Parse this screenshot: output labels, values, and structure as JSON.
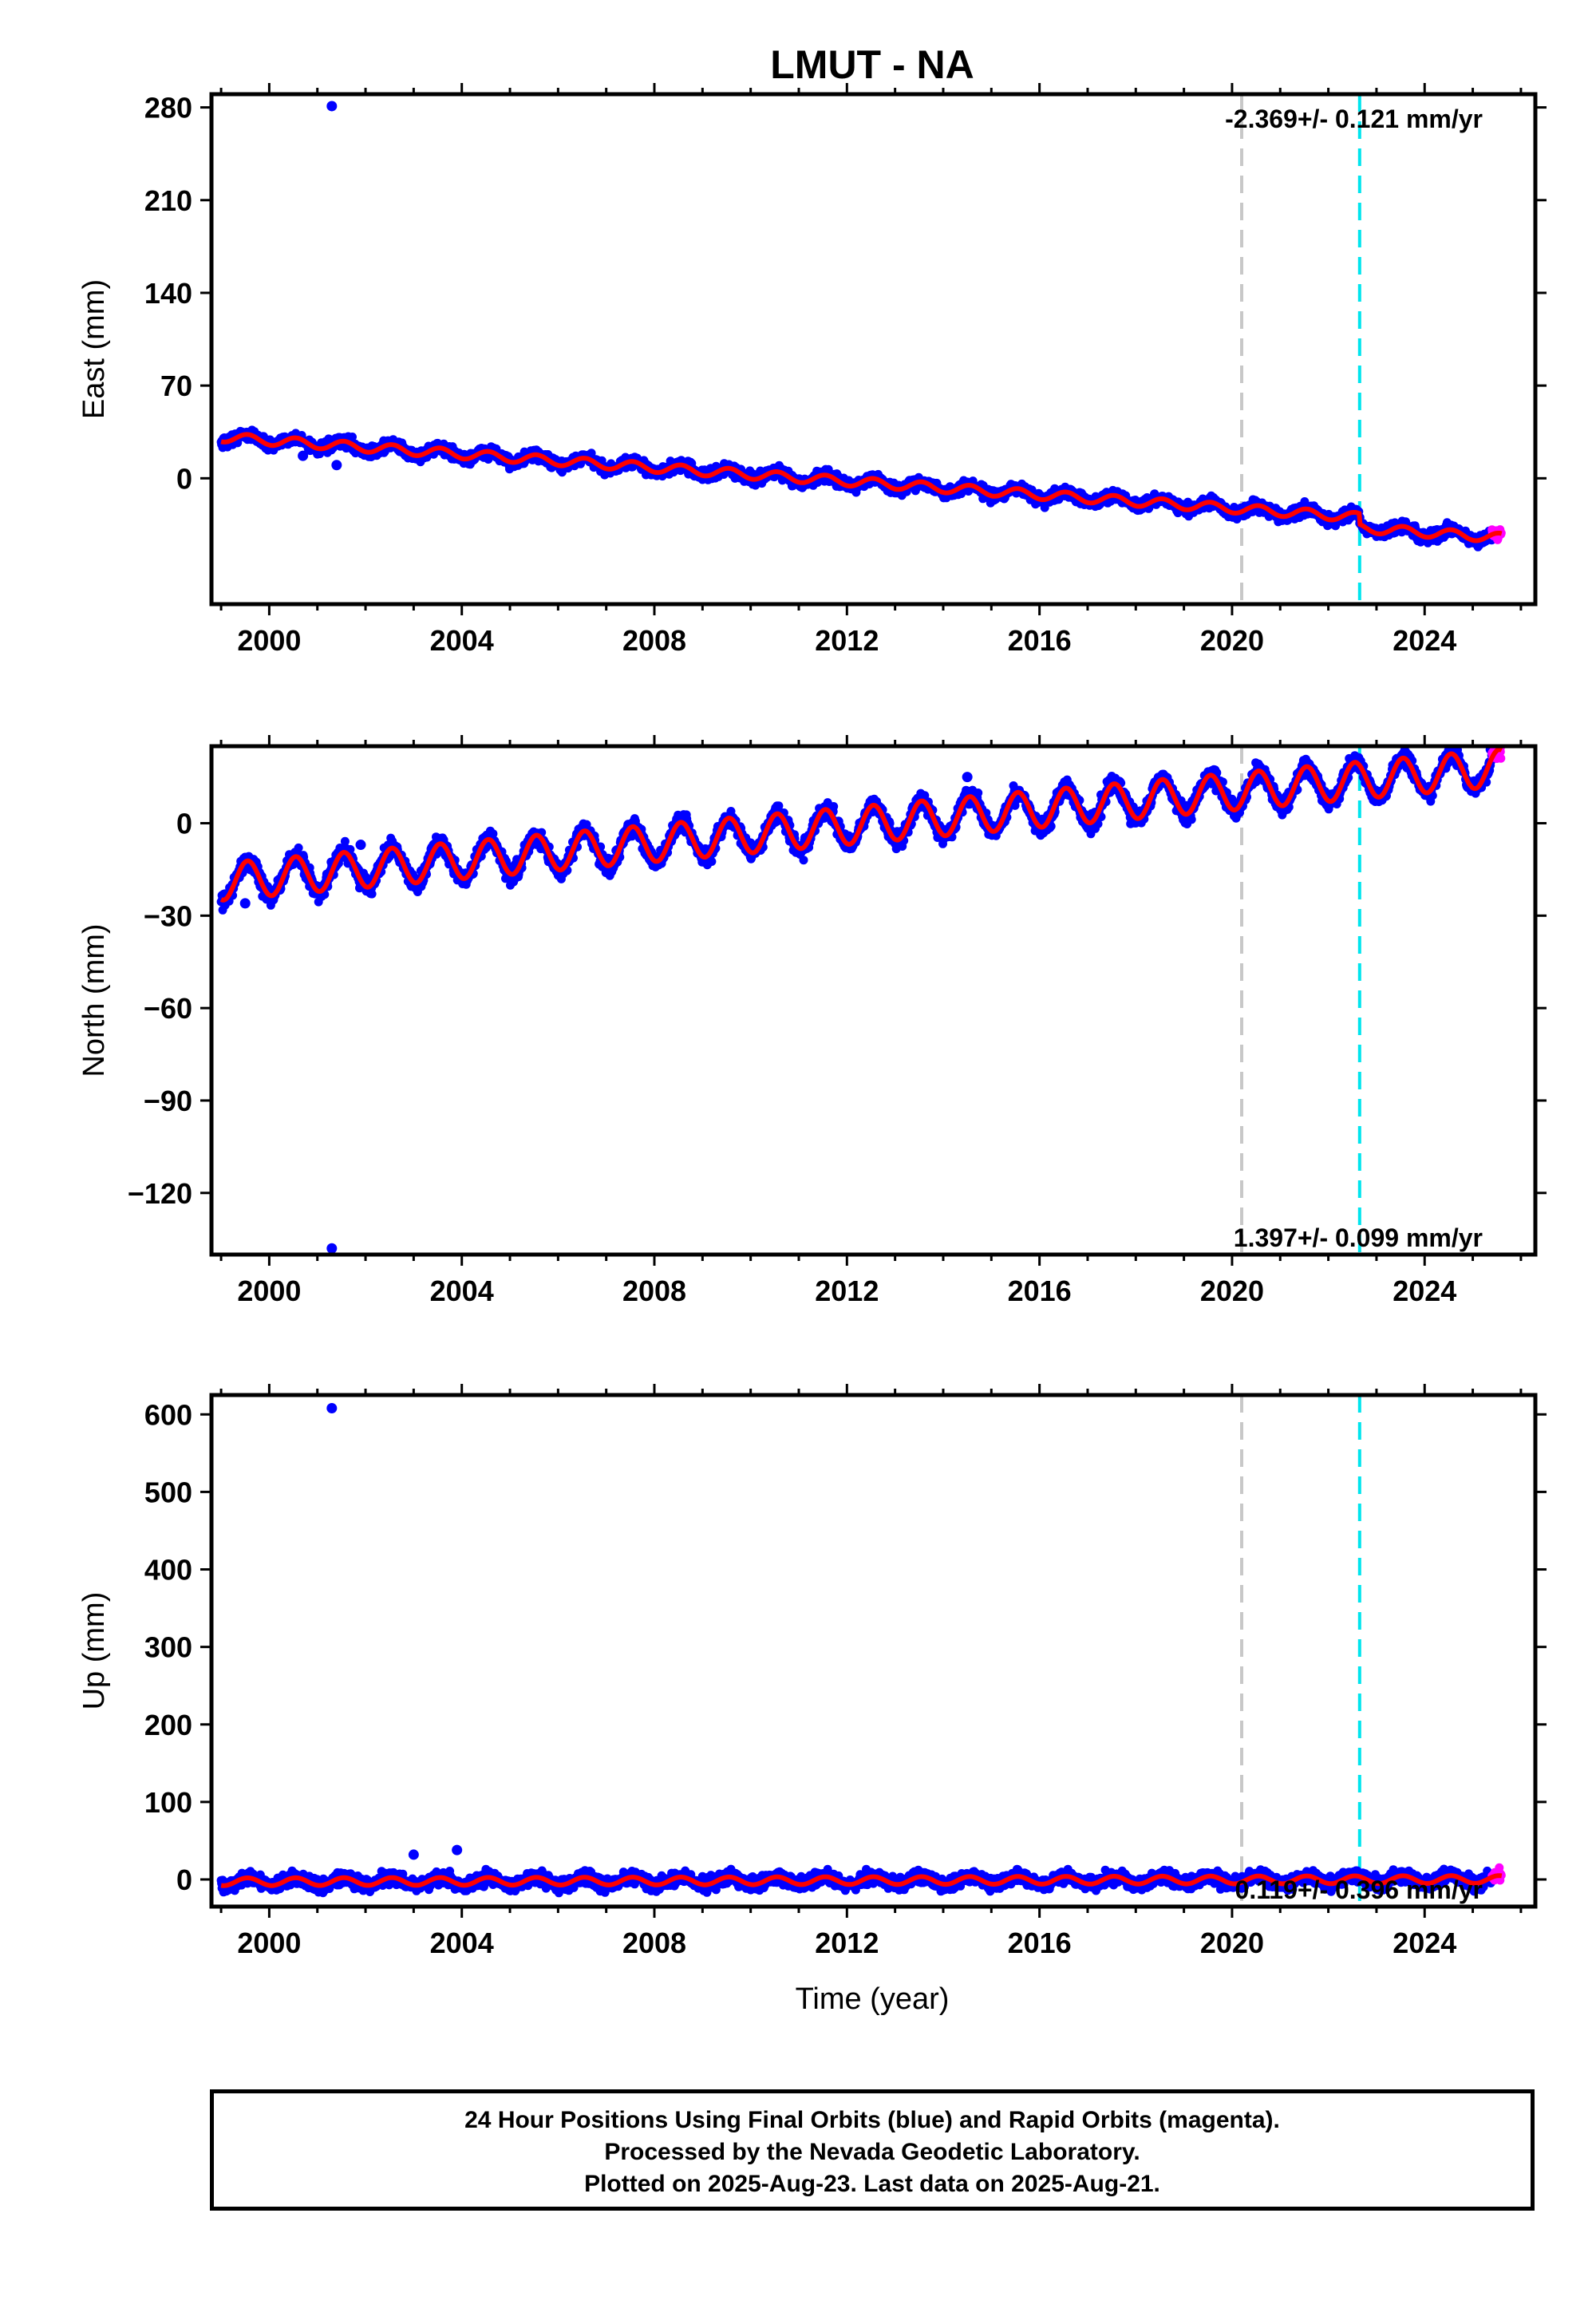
{
  "figure": {
    "title": "LMUT - NA",
    "x_axis_label": "Time (year)",
    "footer_lines": [
      "24 Hour Positions Using Final Orbits (blue) and Rapid Orbits (magenta).",
      "Processed by the Nevada Geodetic Laboratory.",
      "Plotted on 2025-Aug-23. Last data on 2025-Aug-21."
    ]
  },
  "colors": {
    "final_orbits": "#0000ff",
    "rapid_orbits": "#ff00ff",
    "model_fit": "#ff0000",
    "equipment_change_line": "#c8c8c8",
    "earthquake_line": "#00e5ee"
  },
  "chart_data": [
    {
      "type": "scatter",
      "component": "east",
      "ylabel": "East (mm)",
      "xlabel": "",
      "xlim": [
        1998.8,
        2026.3
      ],
      "ylim": [
        -95,
        290
      ],
      "xticks": [
        2000,
        2004,
        2008,
        2012,
        2016,
        2020,
        2024
      ],
      "yticks": [
        0,
        70,
        140,
        210,
        280
      ],
      "rate_label": "-2.369+/- 0.121 mm/yr",
      "rate_position": "top-right",
      "vertical_lines": [
        {
          "kind": "equipment_change",
          "x": 2020.2
        },
        {
          "kind": "earthquake",
          "x": 2022.65
        }
      ],
      "trend": {
        "start": [
          1999.0,
          31
        ],
        "end": [
          2025.6,
          -37
        ],
        "seasonal_amplitude": 3.5,
        "scatter": 3
      },
      "offsets": [
        {
          "x": 2022.65,
          "dy": -8
        }
      ],
      "outliers": [
        {
          "x": 2001.3,
          "y": 281
        },
        {
          "x": 2001.4,
          "y": 10
        },
        {
          "x": 2000.7,
          "y": 17
        }
      ],
      "rapid_segment": [
        2025.4,
        2025.65
      ]
    },
    {
      "type": "scatter",
      "component": "north",
      "ylabel": "North (mm)",
      "xlabel": "",
      "xlim": [
        1998.8,
        2026.3
      ],
      "ylim": [
        -140,
        25
      ],
      "xticks": [
        2000,
        2004,
        2008,
        2012,
        2016,
        2020,
        2024
      ],
      "yticks": [
        -120,
        -90,
        -60,
        -30,
        0
      ],
      "rate_label": "1.397+/- 0.099 mm/yr",
      "rate_position": "bottom-right",
      "vertical_lines": [
        {
          "kind": "equipment_change",
          "x": 2020.2
        },
        {
          "kind": "earthquake",
          "x": 2022.65
        }
      ],
      "trend": {
        "start": [
          1999.0,
          -19
        ],
        "end": [
          2025.6,
          18
        ],
        "seasonal_amplitude": 6,
        "scatter": 2
      },
      "offsets": [],
      "outliers": [
        {
          "x": 2001.3,
          "y": -138
        },
        {
          "x": 2014.5,
          "y": 15
        },
        {
          "x": 2001.9,
          "y": -7
        },
        {
          "x": 1999.5,
          "y": -26
        }
      ],
      "rapid_segment": [
        2025.4,
        2025.65
      ]
    },
    {
      "type": "scatter",
      "component": "up",
      "ylabel": "Up (mm)",
      "xlabel": "Time (year)",
      "xlim": [
        1998.8,
        2026.3
      ],
      "ylim": [
        -35,
        625
      ],
      "xticks": [
        2000,
        2004,
        2008,
        2012,
        2016,
        2020,
        2024
      ],
      "yticks": [
        0,
        100,
        200,
        300,
        400,
        500,
        600
      ],
      "rate_label": "0.119+/- 0.396 mm/yr",
      "rate_position": "bottom-right",
      "vertical_lines": [
        {
          "kind": "equipment_change",
          "x": 2020.2
        },
        {
          "kind": "earthquake",
          "x": 2022.65
        }
      ],
      "trend": {
        "start": [
          1999.0,
          -3
        ],
        "end": [
          2025.6,
          0
        ],
        "seasonal_amplitude": 5,
        "scatter": 6
      },
      "offsets": [],
      "outliers": [
        {
          "x": 2001.3,
          "y": 608
        },
        {
          "x": 2003.9,
          "y": 38
        },
        {
          "x": 2003.0,
          "y": 32
        }
      ],
      "rapid_segment": [
        2025.4,
        2025.65
      ]
    }
  ]
}
